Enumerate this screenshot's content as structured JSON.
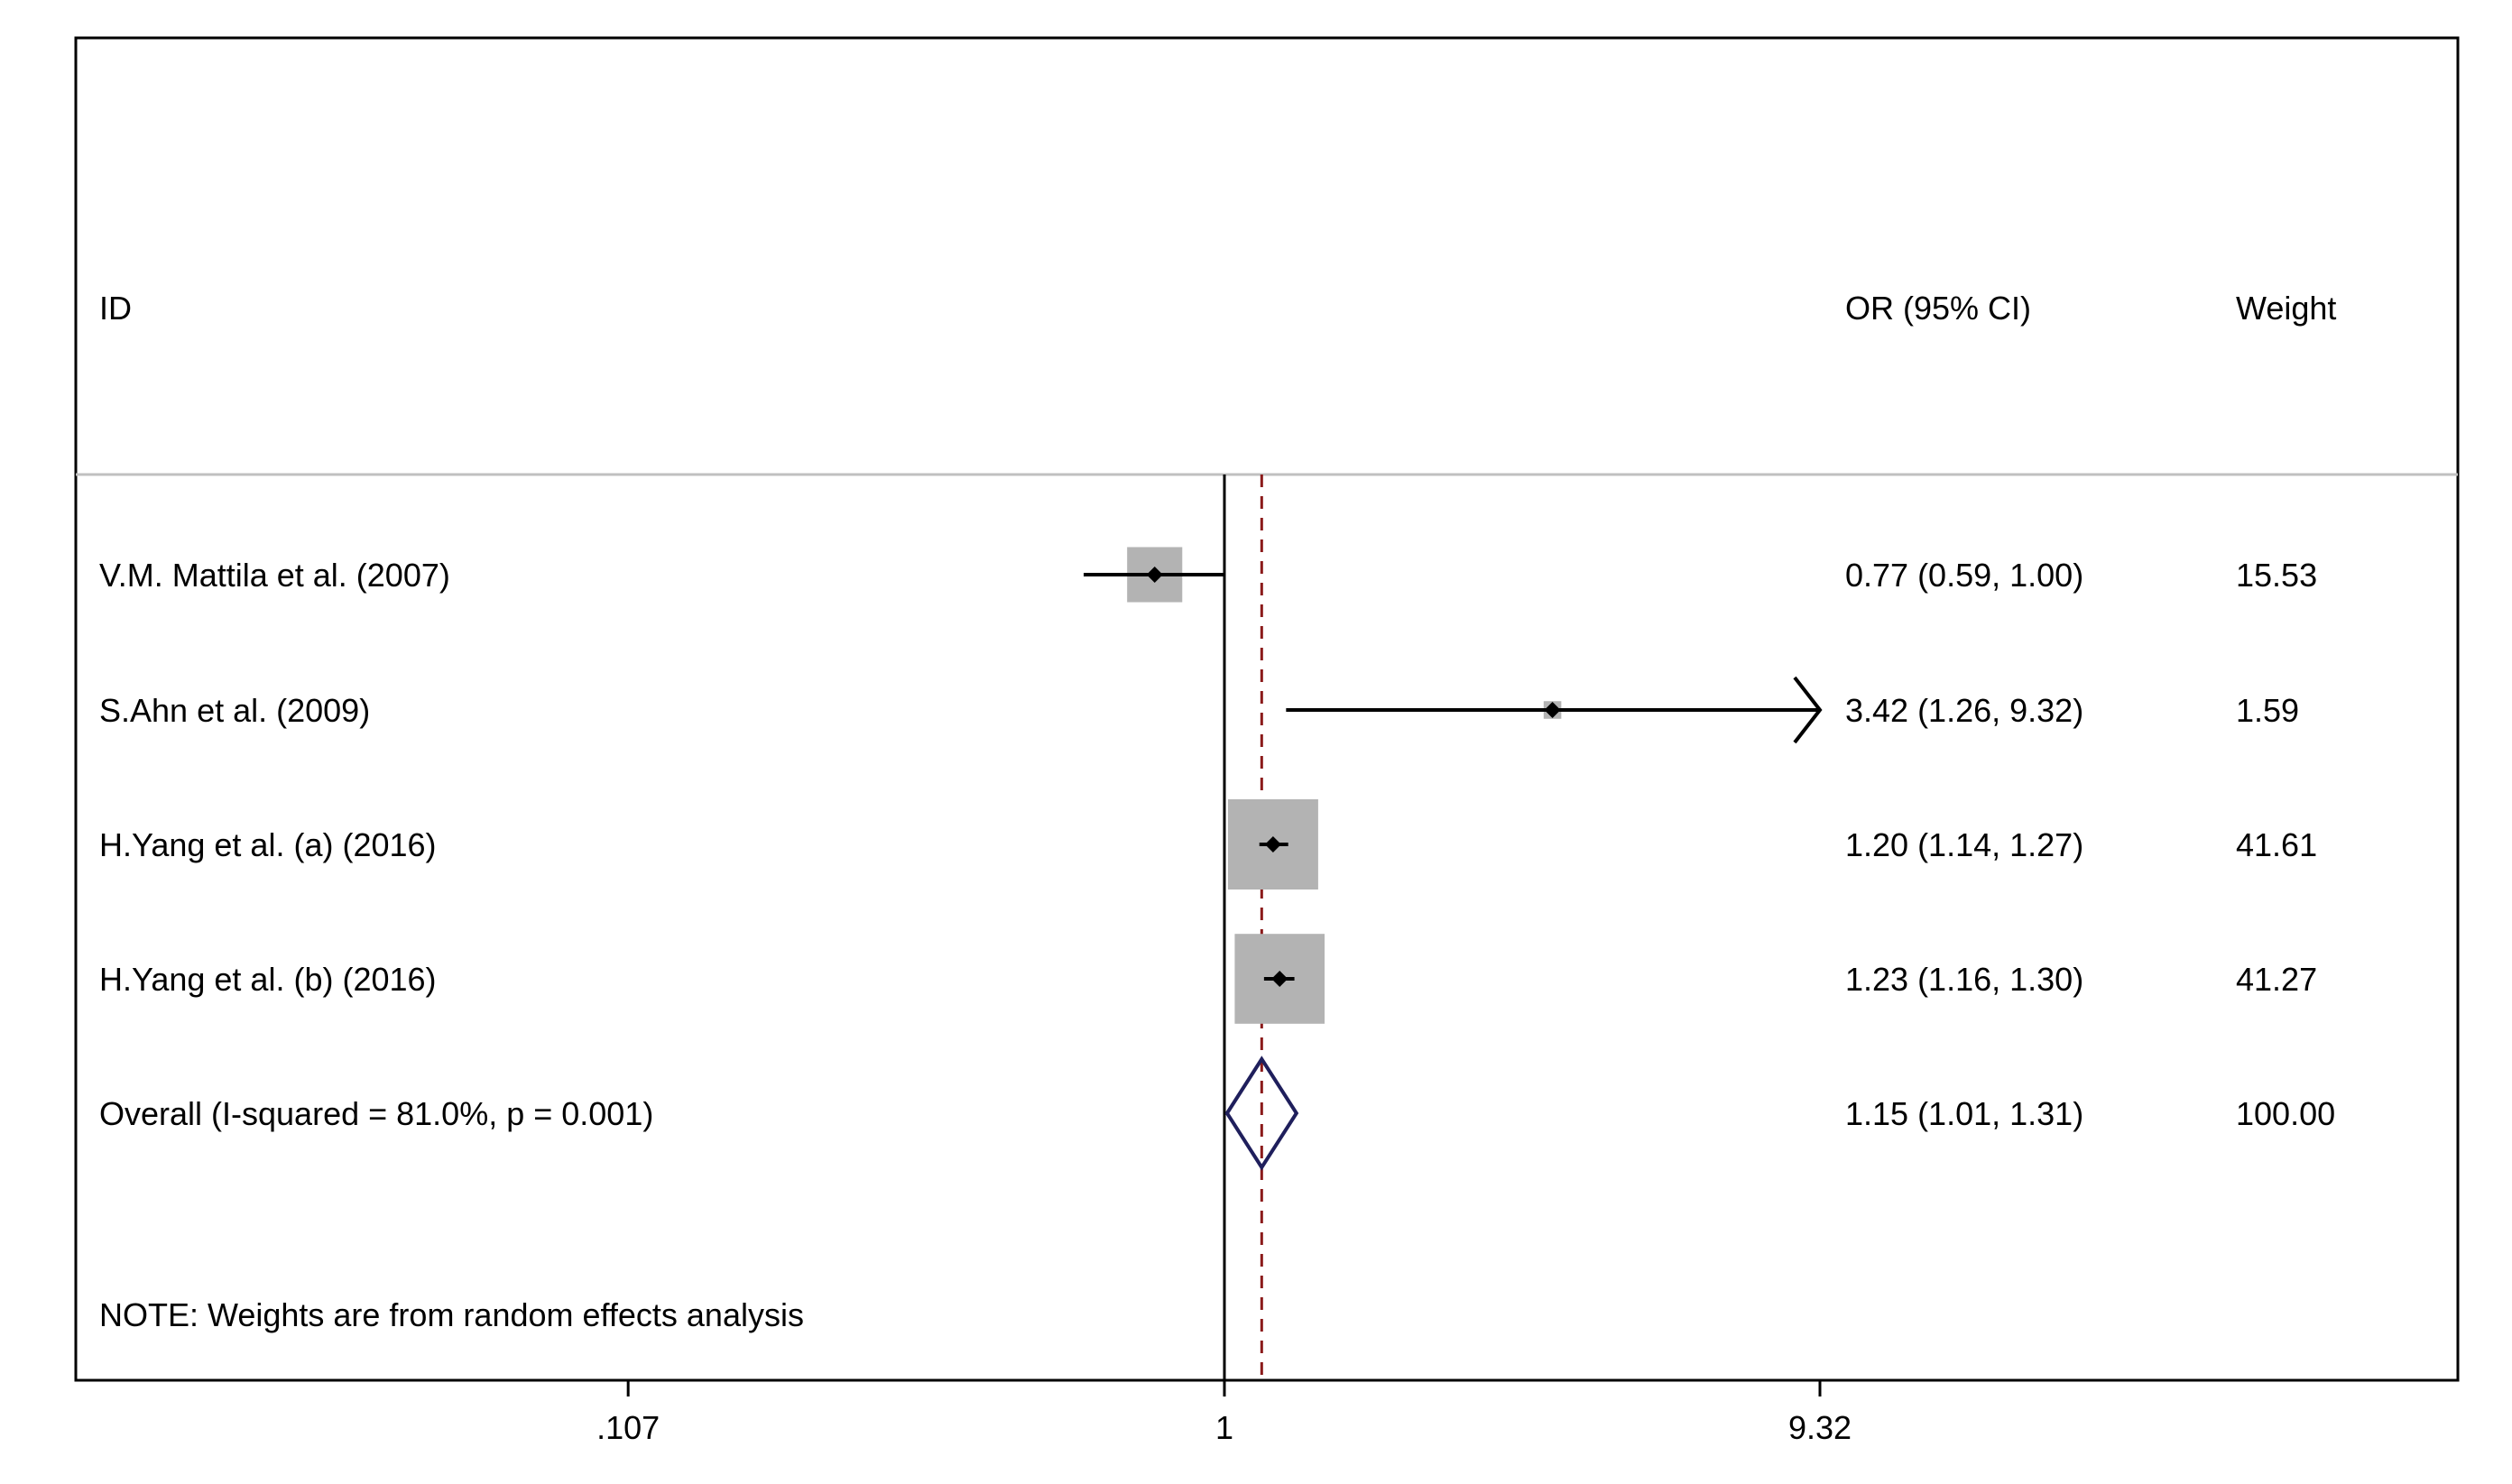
{
  "chart_data": {
    "type": "forest",
    "columns": {
      "id": "ID",
      "effect": "OR (95% CI)",
      "weight": "Weight"
    },
    "studies": [
      {
        "id": "V.M. Mattila et al. (2007)",
        "or": 0.77,
        "lo": 0.59,
        "hi": 1.0,
        "ci_text": "0.77 (0.59, 1.00)",
        "weight": 15.53,
        "weight_text": "15.53"
      },
      {
        "id": "S.Ahn et al. (2009)",
        "or": 3.42,
        "lo": 1.26,
        "hi": 9.32,
        "ci_text": "3.42 (1.26, 9.32)",
        "weight": 1.59,
        "weight_text": "1.59",
        "hi_clipped": true
      },
      {
        "id": "H.Yang et al. (a) (2016)",
        "or": 1.2,
        "lo": 1.14,
        "hi": 1.27,
        "ci_text": "1.20 (1.14, 1.27)",
        "weight": 41.61,
        "weight_text": "41.61"
      },
      {
        "id": "H.Yang et al. (b) (2016)",
        "or": 1.23,
        "lo": 1.16,
        "hi": 1.3,
        "ci_text": "1.23 (1.16, 1.30)",
        "weight": 41.27,
        "weight_text": "41.27"
      }
    ],
    "overall": {
      "id": "Overall  (I-squared = 81.0%, p = 0.001)",
      "or": 1.15,
      "lo": 1.01,
      "hi": 1.31,
      "ci_text": "1.15 (1.01, 1.31)",
      "weight_text": "100.00"
    },
    "note": "NOTE: Weights are from random effects analysis",
    "x_scale": "log",
    "x_ticks": [
      {
        "value": 0.107,
        "label": ".107"
      },
      {
        "value": 1,
        "label": "1"
      },
      {
        "value": 9.32,
        "label": "9.32"
      }
    ],
    "null_line": 1,
    "colors": {
      "box": "#b3b3b3",
      "line": "#000000",
      "diamond": "#1f1f5c",
      "overall_line": "#8b1a1a",
      "separator": "#c0c0c0"
    }
  }
}
